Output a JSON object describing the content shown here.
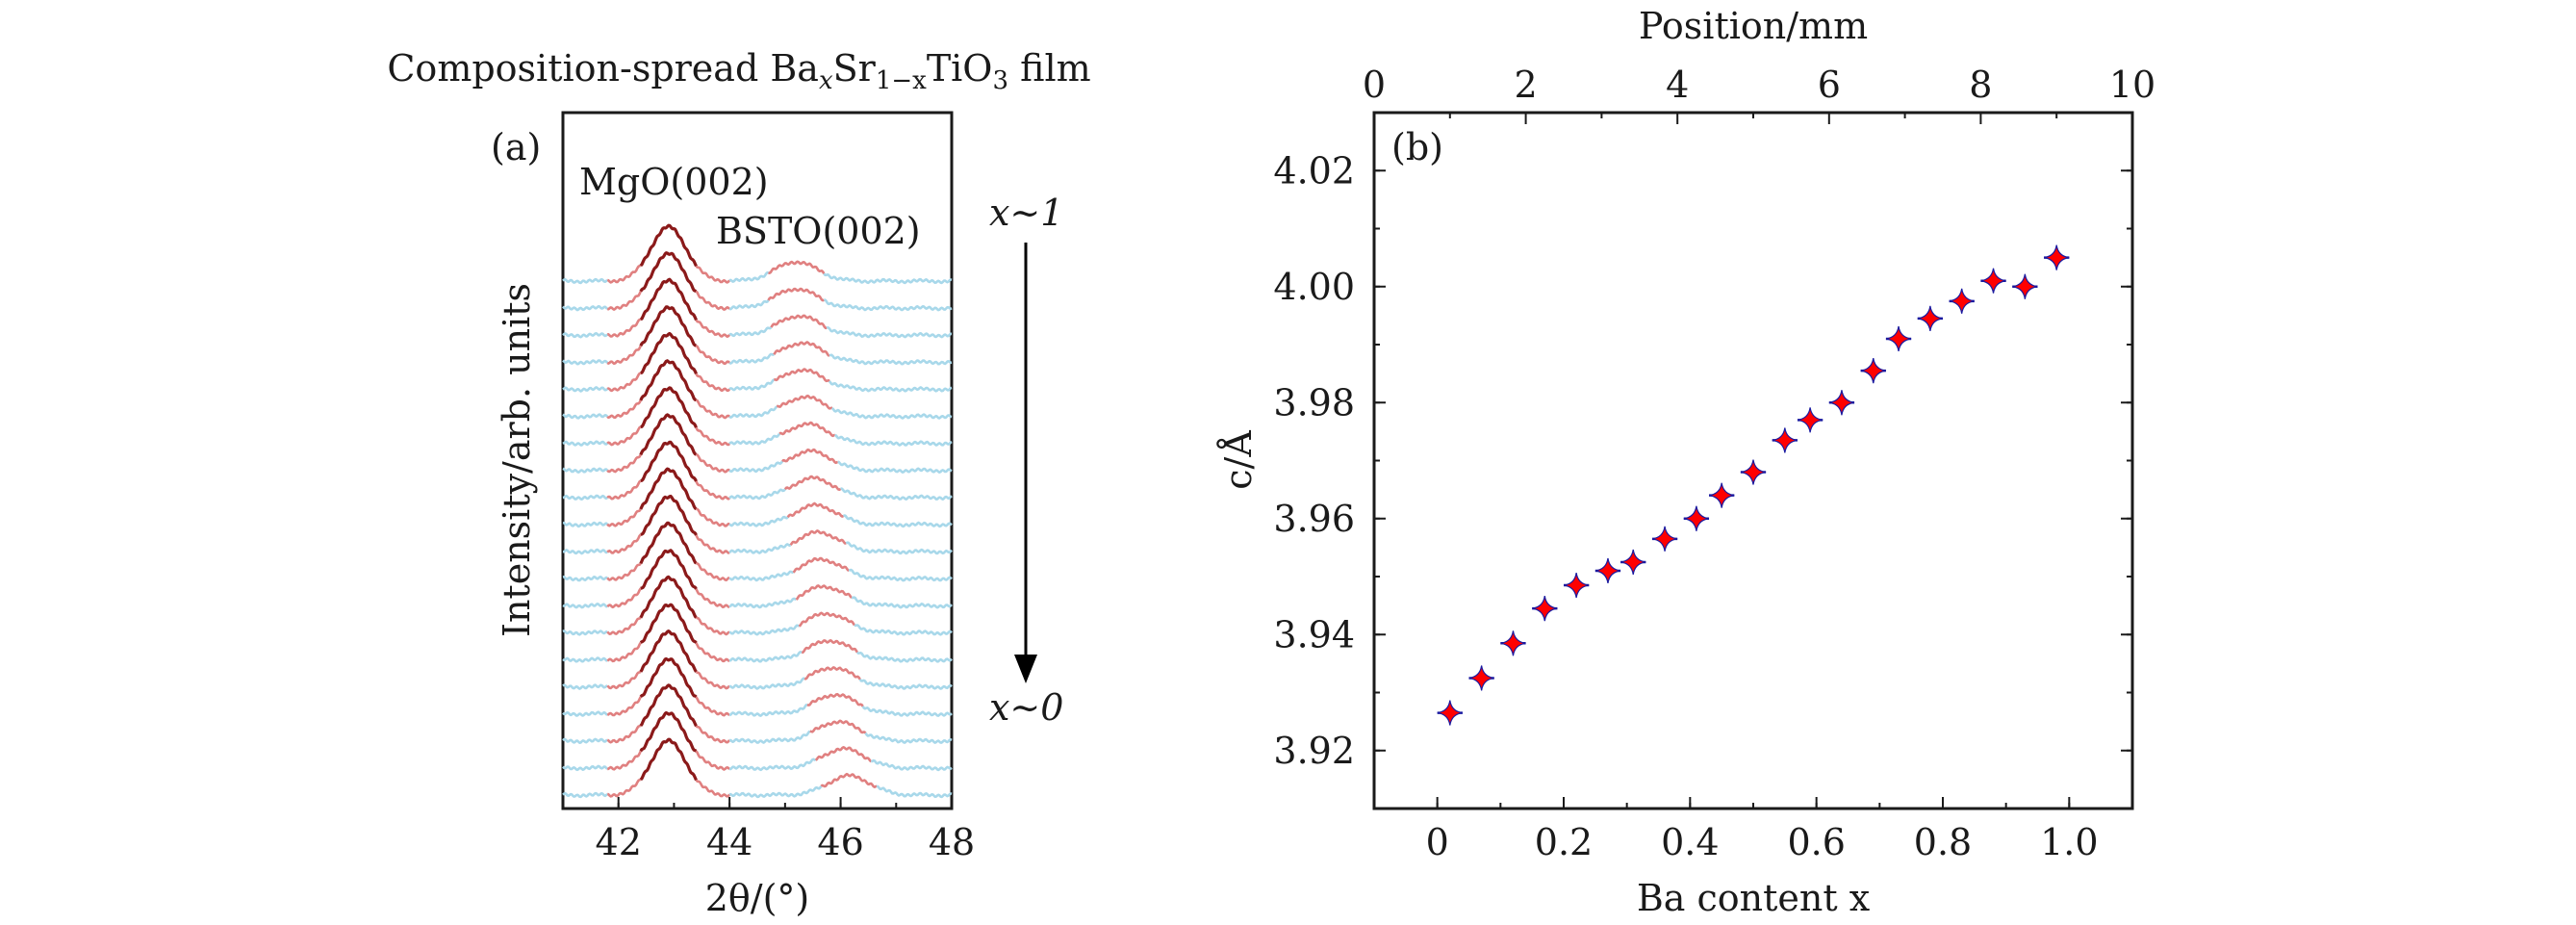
{
  "chart_data": [
    {
      "type": "line",
      "panel_label": "(a)",
      "title": "Composition-spread BaₓSr₁₋ₓTiO₃ film",
      "title_parts": {
        "pre": "Composition-spread Ba",
        "sub1": "x",
        "mid": "Sr",
        "sub2": "1−x",
        "mid2": "TiO",
        "sub3": "3",
        "post": " film"
      },
      "xlabel": "2θ/(°)",
      "ylabel": "Intensity/arb. units",
      "xlim": [
        41,
        48
      ],
      "xticks": [
        42,
        44,
        46,
        48
      ],
      "y_ticks_shown": false,
      "n_curves": 20,
      "mgo_peak_center": 42.9,
      "bsto_peak_centers": [
        45.2,
        45.2,
        45.25,
        45.3,
        45.3,
        45.35,
        45.4,
        45.45,
        45.5,
        45.55,
        45.6,
        45.65,
        45.7,
        45.75,
        45.8,
        45.85,
        45.9,
        45.95,
        46.05,
        46.15
      ],
      "annotations": {
        "mgo": "MgO(002)",
        "bsto": "BSTO(002)",
        "top": "x∼1",
        "bottom": "x∼0"
      },
      "colors": {
        "background_curve": "#a8d8ea",
        "mgo_peak": "#8b1a1a",
        "bsto_peak": "#e08080"
      }
    },
    {
      "type": "scatter",
      "panel_label": "(b)",
      "xlabel": "Ba content x",
      "ylabel": "c/Å",
      "top_xlabel": "Position/mm",
      "xlim": [
        -0.1,
        1.1
      ],
      "ylim": [
        3.91,
        4.03
      ],
      "xticks": [
        0,
        0.2,
        0.4,
        0.6,
        0.8,
        1.0
      ],
      "xtick_labels": [
        "0",
        "0.2",
        "0.4",
        "0.6",
        "0.8",
        "1.0"
      ],
      "yticks": [
        3.92,
        3.94,
        3.96,
        3.98,
        4.0,
        4.02
      ],
      "ytick_labels": [
        "3.92",
        "3.94",
        "3.96",
        "3.98",
        "4.00",
        "4.02"
      ],
      "top_xticks": [
        0,
        2,
        4,
        6,
        8,
        10
      ],
      "x": [
        0.02,
        0.07,
        0.12,
        0.17,
        0.22,
        0.27,
        0.31,
        0.36,
        0.41,
        0.45,
        0.5,
        0.55,
        0.59,
        0.64,
        0.69,
        0.73,
        0.78,
        0.83,
        0.88,
        0.93,
        0.98
      ],
      "y": [
        3.9265,
        3.9325,
        3.9385,
        3.9445,
        3.9485,
        3.951,
        3.9525,
        3.9565,
        3.96,
        3.964,
        3.968,
        3.9735,
        3.977,
        3.98,
        3.9855,
        3.991,
        3.9945,
        3.9975,
        4.001,
        4.0,
        4.005
      ],
      "x_error": 0.02,
      "colors": {
        "marker": "#ff0000",
        "edge": "#1a1aa0",
        "errorbar": "#1a1aa0"
      }
    }
  ]
}
